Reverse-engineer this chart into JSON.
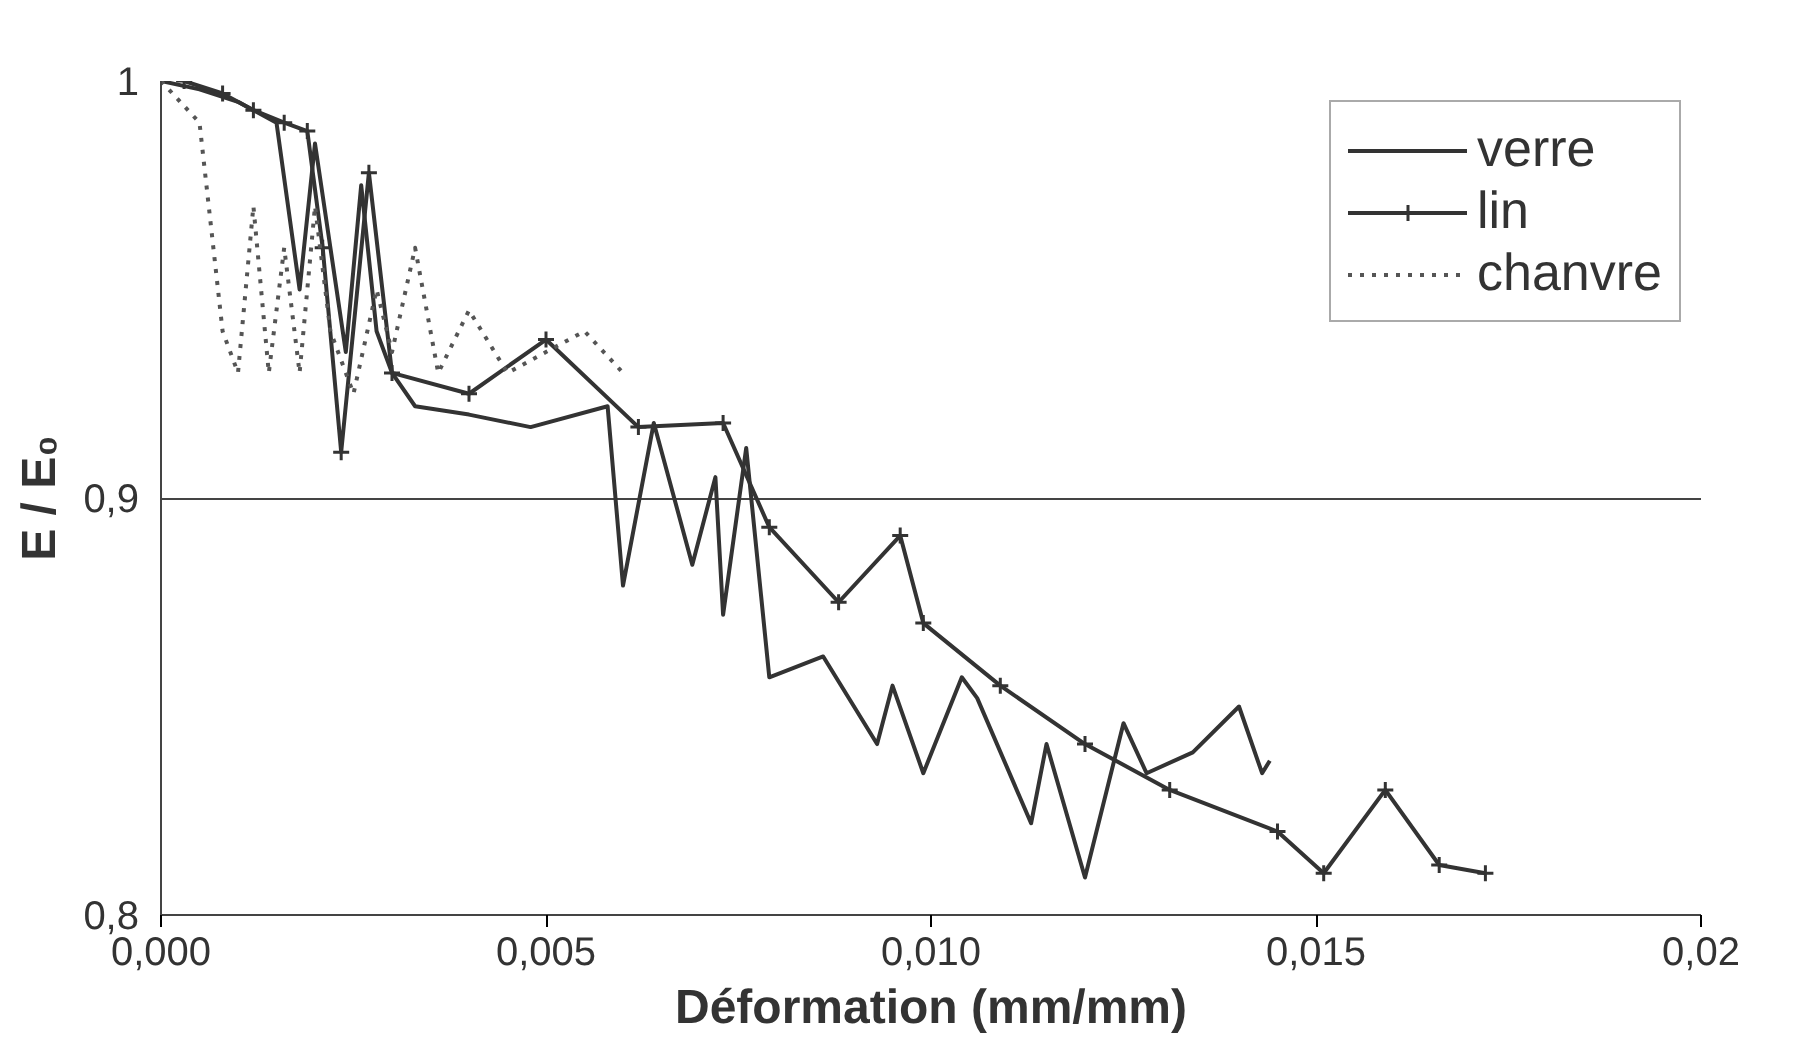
{
  "chart_data": {
    "type": "line",
    "xlabel": "Déformation (mm/mm)",
    "ylabel": "E / E₀",
    "xlim": [
      0,
      0.02
    ],
    "ylim": [
      0.8,
      1
    ],
    "xticks": [
      {
        "value": 0,
        "label": "0,000"
      },
      {
        "value": 0.005,
        "label": "0,005"
      },
      {
        "value": 0.01,
        "label": "0,010"
      },
      {
        "value": 0.015,
        "label": "0,015"
      },
      {
        "value": 0.02,
        "label": "0,02"
      }
    ],
    "yticks": [
      {
        "value": 0.8,
        "label": "0,8"
      },
      {
        "value": 0.9,
        "label": "0,9"
      },
      1
    ],
    "grid": "y",
    "legend": "top right",
    "series": [
      {
        "name": "verre",
        "color": "#333333",
        "line_style": "solid",
        "marker": "none",
        "x": [
          0,
          0.0005,
          0.001,
          0.0015,
          0.0018,
          0.002,
          0.0022,
          0.0024,
          0.0026,
          0.0028,
          0.003,
          0.0033,
          0.004,
          0.0048,
          0.0058,
          0.006,
          0.0064,
          0.0069,
          0.0072,
          0.0073,
          0.0076,
          0.0079,
          0.0086,
          0.0093,
          0.0095,
          0.0099,
          0.0104,
          0.0106,
          0.0113,
          0.0115,
          0.012,
          0.0125,
          0.0128,
          0.0134,
          0.014,
          0.0143,
          0.0144
        ],
        "values": [
          1,
          0.998,
          0.995,
          0.99,
          0.95,
          0.985,
          0.96,
          0.935,
          0.975,
          0.94,
          0.93,
          0.922,
          0.92,
          0.917,
          0.922,
          0.879,
          0.918,
          0.884,
          0.905,
          0.872,
          0.912,
          0.857,
          0.862,
          0.841,
          0.855,
          0.834,
          0.857,
          0.852,
          0.822,
          0.841,
          0.809,
          0.846,
          0.834,
          0.839,
          0.85,
          0.834,
          0.837
        ]
      },
      {
        "name": "lin",
        "color": "#333333",
        "line_style": "solid",
        "marker": "cross",
        "x": [
          0.0003,
          0.0008,
          0.0012,
          0.0016,
          0.0019,
          0.0021,
          0.00234,
          0.0027,
          0.003,
          0.004,
          0.005,
          0.0062,
          0.0073,
          0.0079,
          0.0088,
          0.0096,
          0.0099,
          0.0109,
          0.012,
          0.0131,
          0.0145,
          0.0151,
          0.0159,
          0.0166,
          0.0172
        ],
        "values": [
          1,
          0.997,
          0.993,
          0.99,
          0.988,
          0.96,
          0.911,
          0.978,
          0.93,
          0.925,
          0.938,
          0.917,
          0.918,
          0.893,
          0.875,
          0.891,
          0.87,
          0.855,
          0.841,
          0.83,
          0.82,
          0.81,
          0.83,
          0.812,
          0.81
        ]
      },
      {
        "name": "chanvre",
        "color": "#555555",
        "line_style": "dotted",
        "marker": "none",
        "x": [
          0,
          0.0005,
          0.0008,
          0.001,
          0.0012,
          0.0014,
          0.0016,
          0.0018,
          0.002,
          0.0022,
          0.0025,
          0.0028,
          0.003,
          0.0033,
          0.0036,
          0.004,
          0.0045,
          0.005,
          0.0055,
          0.006
        ],
        "values": [
          1,
          0.99,
          0.94,
          0.93,
          0.97,
          0.93,
          0.96,
          0.93,
          0.97,
          0.94,
          0.925,
          0.95,
          0.935,
          0.96,
          0.93,
          0.945,
          0.93,
          0.935,
          0.94,
          0.93
        ]
      }
    ]
  }
}
